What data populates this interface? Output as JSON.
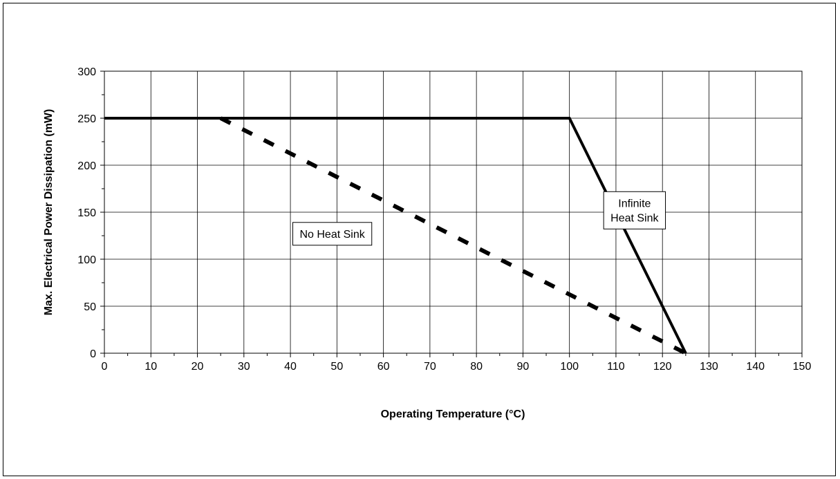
{
  "chart_data": {
    "type": "line",
    "title": "",
    "xlabel": "Operating Temperature (°C)",
    "ylabel": "Max. Electrical Power Dissipation (mW)",
    "xlim": [
      0,
      150
    ],
    "ylim": [
      0,
      300
    ],
    "x_ticks": [
      "0",
      "10",
      "20",
      "30",
      "40",
      "50",
      "60",
      "70",
      "80",
      "90",
      "100",
      "110",
      "120",
      "130",
      "140",
      "150"
    ],
    "y_ticks": [
      "0",
      "50",
      "100",
      "150",
      "200",
      "250",
      "300"
    ],
    "grid": true,
    "legend": "none",
    "series": [
      {
        "style": "solid",
        "color": "#000000",
        "x": [
          0,
          100,
          125
        ],
        "y": [
          250,
          250,
          0
        ]
      },
      {
        "style": "dashed",
        "color": "#000000",
        "x": [
          25,
          125
        ],
        "y": [
          250,
          0
        ]
      }
    ],
    "annotations": [
      {
        "lines": [
          "No Heat Sink"
        ],
        "x": 49,
        "y": 127
      },
      {
        "lines": [
          "Infinite",
          "Heat Sink"
        ],
        "x": 114,
        "y": 152
      }
    ]
  }
}
